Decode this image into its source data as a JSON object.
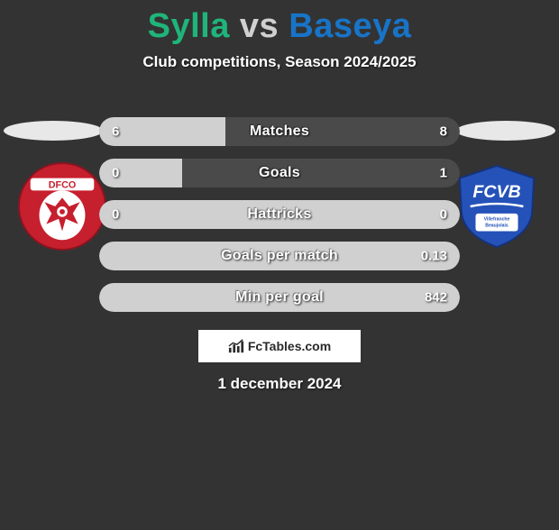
{
  "title": {
    "player1": "Sylla",
    "vs": "vs",
    "player2": "Baseya",
    "color1": "#1fb57a",
    "color_vs": "#d0d0d0",
    "color2": "#1874c8"
  },
  "subtitle": "Club competitions, Season 2024/2025",
  "background_color": "#333333",
  "bar_bg_color": "#4a4a4a",
  "bar_fill_color": "#d0d0d0",
  "stats": [
    {
      "label": "Matches",
      "left_val": "6",
      "right_val": "8",
      "left_pct": 35,
      "right_pct": 0
    },
    {
      "label": "Goals",
      "left_val": "0",
      "right_val": "1",
      "left_pct": 23,
      "right_pct": 0
    },
    {
      "label": "Hattricks",
      "left_val": "0",
      "right_val": "0",
      "left_pct": 100,
      "right_pct": 0,
      "full": true
    },
    {
      "label": "Goals per match",
      "left_val": "",
      "right_val": "0.13",
      "left_pct": 100,
      "right_pct": 0,
      "full": true
    },
    {
      "label": "Min per goal",
      "left_val": "",
      "right_val": "842",
      "left_pct": 100,
      "right_pct": 0,
      "full": true
    }
  ],
  "crest_left": {
    "bg": "#c61f2e",
    "badge_text": "DFCO",
    "badge_text_color": "#ffffff"
  },
  "crest_right": {
    "bg": "#2452b8",
    "badge_text": "FCVB",
    "badge_text_color": "#ffffff"
  },
  "watermark": "FcTables.com",
  "date": "1 december 2024"
}
